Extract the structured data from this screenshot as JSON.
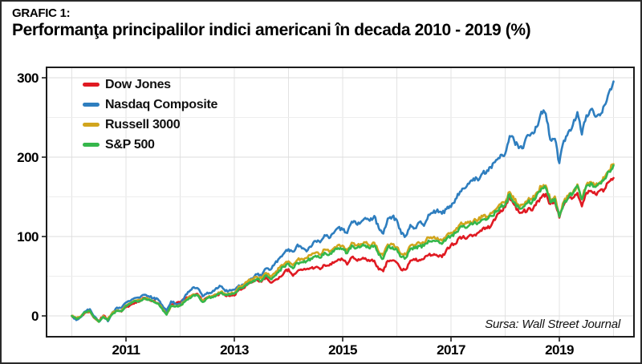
{
  "header": {
    "kicker": "GRAFIC 1:"
  },
  "chart_data": {
    "type": "line",
    "title": "Performanţa principalilor indici americani în decada 2010 - 2019 (%)",
    "source": "Sursa: Wall Street Journal",
    "xlabel": "",
    "ylabel": "",
    "x_mode": "monthly cumulative % change, first point = Jan 2010 baseline 0",
    "x_start_year": 2010,
    "x_ticks": [
      2011,
      2013,
      2015,
      2017,
      2019
    ],
    "x_gridline_years": [
      2010,
      2011,
      2012,
      2013,
      2014,
      2015,
      2016,
      2017,
      2018,
      2019,
      2020
    ],
    "y_ticks": [
      0,
      100,
      200,
      300
    ],
    "y_minor_gridlines": [
      50,
      150,
      250
    ],
    "ylim": [
      -26,
      313
    ],
    "grid": "on",
    "legend_position": "top-left",
    "series": [
      {
        "name": "Dow Jones",
        "color": "#e01a22",
        "values": [
          0,
          -3.5,
          -1.0,
          4.1,
          5.6,
          -2.8,
          -6.3,
          0.4,
          -4.0,
          3.5,
          6.6,
          5.5,
          11.0,
          14.0,
          17.2,
          18.1,
          22.8,
          20.5,
          19.0,
          16.4,
          11.4,
          4.7,
          14.6,
          15.5,
          17.2,
          21.1,
          24.2,
          26.7,
          26.7,
          18.8,
          23.5,
          24.7,
          25.5,
          28.9,
          25.6,
          24.9,
          25.7,
          32.9,
          34.8,
          39.8,
          42.3,
          45.0,
          43.0,
          48.6,
          42.0,
          45.1,
          49.1,
          54.3,
          59.0,
          50.5,
          56.5,
          57.8,
          59.0,
          60.3,
          61.4,
          58.8,
          64.0,
          63.4,
          66.8,
          71.0,
          70.9,
          64.6,
          73.9,
          70.5,
          71.1,
          72.7,
          69.0,
          69.6,
          58.5,
          56.2,
          69.4,
          69.9,
          67.1,
          57.9,
          58.4,
          69.6,
          70.4,
          70.6,
          71.9,
          76.8,
          76.5,
          75.6,
          74.0,
          83.4,
          89.5,
          90.5,
          99.6,
          98.2,
          100.8,
          101.5,
          104.7,
          109.9,
          110.5,
          114.8,
          124.2,
          132.8,
          137.0,
          150.8,
          140.0,
          131.1,
          131.7,
          134.1,
          132.8,
          143.7,
          149.0,
          153.7,
          140.9,
          144.9,
          123.7,
          139.7,
          148.5,
          148.6,
          155.0,
          138.0,
          155.1,
          157.6,
          153.2,
          158.1,
          159.4,
          169.0,
          173.7
        ]
      },
      {
        "name": "Nasdaq Composite",
        "color": "#2e7ebf",
        "values": [
          0,
          -5.4,
          -1.4,
          5.7,
          8.5,
          -0.5,
          -7.0,
          -0.6,
          -6.8,
          4.4,
          10.5,
          10.1,
          16.9,
          19.0,
          22.6,
          22.6,
          26.6,
          25.0,
          22.2,
          21.5,
          13.7,
          6.4,
          18.3,
          15.5,
          14.8,
          24.0,
          30.7,
          36.2,
          34.3,
          24.6,
          29.3,
          29.5,
          35.2,
          37.3,
          31.2,
          32.7,
          33.1,
          38.5,
          39.3,
          44.0,
          46.7,
          52.3,
          50.0,
          59.8,
          58.2,
          66.2,
          72.7,
          78.9,
          84.1,
          80.9,
          89.9,
          85.0,
          81.3,
          87.0,
          94.3,
          92.6,
          101.8,
          98.0,
          104.1,
          111.2,
          108.7,
          104.3,
          118.7,
          116.0,
          117.8,
          123.4,
          119.8,
          126.0,
          110.5,
          103.6,
          122.7,
          125.1,
          120.7,
          103.3,
          100.9,
          114.6,
          110.4,
          118.1,
          113.4,
          127.5,
          129.7,
          134.1,
          128.7,
          134.6,
          137.2,
          147.4,
          156.7,
          160.5,
          166.5,
          173.2,
          170.6,
          179.8,
          183.3,
          186.3,
          196.5,
          203.0,
          204.2,
          226.6,
          220.5,
          211.3,
          211.4,
          228.0,
          231.0,
          238.1,
          257.4,
          254.6,
          222.0,
          223.1,
          192.4,
          220.9,
          232.0,
          240.6,
          256.8,
          228.5,
          252.8,
          260.3,
          250.9,
          252.5,
          265.4,
          281.9,
          295.4
        ]
      },
      {
        "name": "Russell 3000",
        "color": "#d1a51d",
        "values": [
          0,
          -3.2,
          -0.5,
          4.6,
          6.1,
          -2.3,
          -6.8,
          -0.2,
          -3.5,
          4.0,
          7.1,
          6.4,
          13.3,
          15.6,
          19.3,
          19.2,
          22.6,
          20.9,
          18.7,
          16.2,
          9.6,
          1.8,
          12.7,
          12.1,
          13.1,
          18.7,
          23.5,
          27.3,
          26.4,
          18.5,
          23.2,
          24.7,
          27.1,
          30.2,
          27.6,
          28.0,
          28.9,
          37.3,
          38.8,
          43.7,
          46.3,
          49.2,
          47.0,
          54.2,
          49.4,
          53.8,
          60.5,
          64.9,
          68.8,
          63.9,
          70.8,
          71.9,
          72.9,
          76.5,
          79.8,
          77.1,
          83.7,
          80.9,
          85.0,
          89.4,
          88.6,
          82.4,
          92.2,
          88.9,
          90.5,
          92.5,
          88.5,
          92.2,
          80.4,
          75.7,
          90.0,
          90.1,
          86.8,
          78.0,
          77.3,
          88.7,
          89.2,
          92.0,
          92.2,
          98.9,
          98.7,
          98.4,
          94.7,
          101.2,
          104.8,
          107.9,
          115.5,
          115.4,
          117.3,
          119.8,
          120.8,
          125.0,
          125.2,
          129.4,
          134.5,
          140.9,
          143.3,
          156.2,
          146.4,
          139.8,
          140.5,
          145.6,
          146.8,
          155.6,
          163.2,
          164.3,
          146.2,
          150.5,
          127.8,
          144.0,
          151.2,
          155.7,
          165.7,
          148.3,
          165.3,
          168.8,
          163.9,
          168.4,
          173.9,
          183.2,
          191.2
        ]
      },
      {
        "name": "S&P 500",
        "color": "#35b74b",
        "values": [
          0,
          -3.7,
          -1.0,
          4.9,
          6.4,
          -2.3,
          -7.6,
          -1.2,
          -5.9,
          2.3,
          6.1,
          5.9,
          12.8,
          15.3,
          19.0,
          18.9,
          22.3,
          20.6,
          18.4,
          15.9,
          9.3,
          1.5,
          12.4,
          11.8,
          12.8,
          17.7,
          22.5,
          26.3,
          25.4,
          17.5,
          22.2,
          23.7,
          26.1,
          29.2,
          26.6,
          27.0,
          27.9,
          34.3,
          35.8,
          40.7,
          43.3,
          46.2,
          44.0,
          51.2,
          46.4,
          50.8,
          57.5,
          61.9,
          65.8,
          59.9,
          66.8,
          67.9,
          68.9,
          72.5,
          75.8,
          73.1,
          79.7,
          76.9,
          81.0,
          85.4,
          84.6,
          78.9,
          88.7,
          85.4,
          87.0,
          89.0,
          85.0,
          88.7,
          76.9,
          72.2,
          86.5,
          86.6,
          83.3,
          74.0,
          73.3,
          84.7,
          85.2,
          88.0,
          88.2,
          94.9,
          94.7,
          94.4,
          90.7,
          97.2,
          100.8,
          104.4,
          112.0,
          111.9,
          113.8,
          116.3,
          117.3,
          121.5,
          121.7,
          125.9,
          131.0,
          137.4,
          139.8,
          153.2,
          143.4,
          136.8,
          137.5,
          142.6,
          143.8,
          152.6,
          160.2,
          161.3,
          143.2,
          147.5,
          124.8,
          142.5,
          149.7,
          154.2,
          164.2,
          146.8,
          163.8,
          167.3,
          162.4,
          166.9,
          172.4,
          181.7,
          189.7
        ]
      }
    ]
  }
}
